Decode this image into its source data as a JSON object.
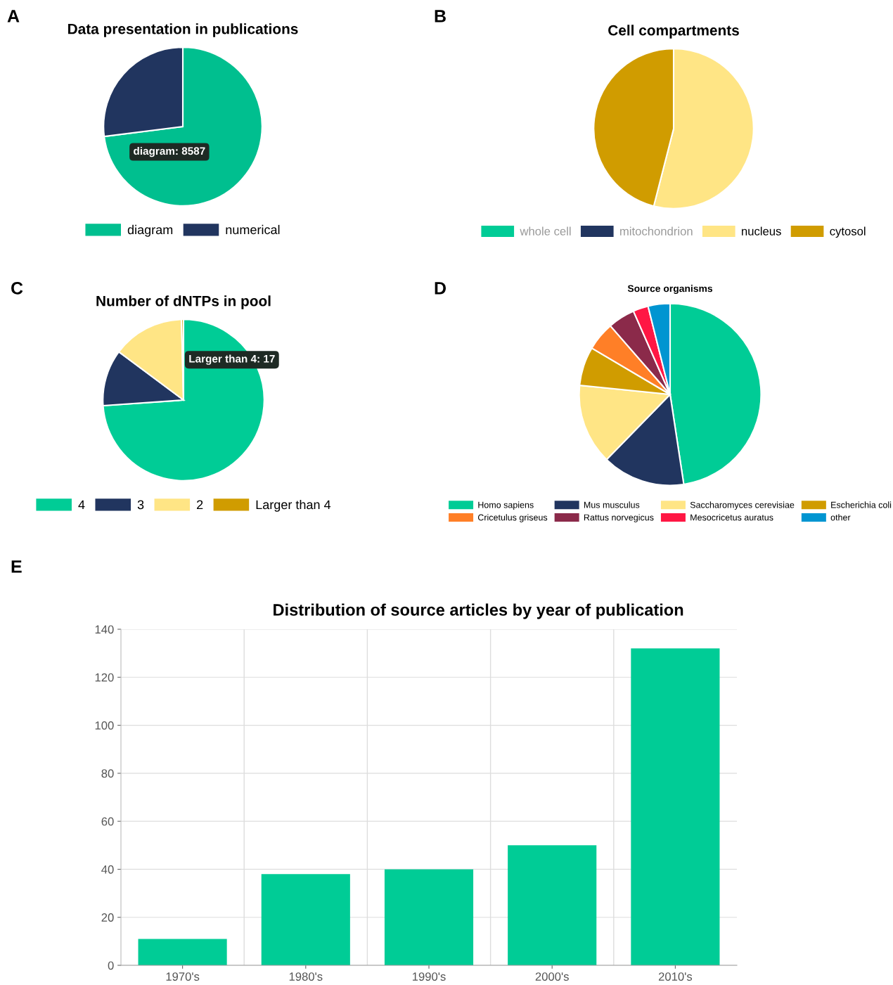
{
  "chart_data": [
    {
      "type": "pie",
      "title": "Data presentation in publications",
      "categories": [
        "diagram",
        "numerical"
      ],
      "values": [
        73,
        27
      ],
      "colors": [
        "#00bf8f",
        "#21355f"
      ],
      "legend": "bottom",
      "annotations": [
        "A",
        "diagram: 8587"
      ]
    },
    {
      "type": "pie",
      "title": "Cell compartments",
      "categories": [
        "whole cell",
        "mitochondrion",
        "nucleus",
        "cytosol"
      ],
      "values": [
        null,
        null,
        54,
        46
      ],
      "colors": [
        "#00cc96",
        "#21355f",
        "#ffe585",
        "#d09c00"
      ],
      "legend": "bottom",
      "annotations": [
        "B"
      ]
    },
    {
      "type": "pie",
      "title": "Number of dNTPs in pool",
      "categories": [
        "4",
        "3",
        "2",
        "Larger than 4"
      ],
      "values": [
        73.9,
        11.3,
        14.4,
        0.4
      ],
      "colors": [
        "#00cc96",
        "#21355f",
        "#ffe585",
        "#d09c00"
      ],
      "legend": "bottom",
      "annotations": [
        "C",
        "Larger than 4: 17"
      ]
    },
    {
      "type": "pie",
      "title": "Source organisms",
      "categories": [
        "Homo sapiens",
        "Mus musculus",
        "Saccharomyces cerevisiae",
        "Escherichia coli",
        "Cricetulus griseus",
        "Rattus norvegicus",
        "Mesocricetus auratus",
        "other"
      ],
      "values": [
        47.6,
        14.7,
        14.3,
        6.9,
        5.1,
        4.8,
        2.7,
        3.9
      ],
      "colors": [
        "#00cc96",
        "#21355f",
        "#ffe585",
        "#d09c00",
        "#ff7f27",
        "#8b2a4a",
        "#ff1744",
        "#0095d1"
      ],
      "legend": "bottom",
      "annotations": [
        "D"
      ]
    },
    {
      "type": "bar",
      "title": "Distribution of source articles by year of publication",
      "categories": [
        "1970's",
        "1980's",
        "1990's",
        "2000's",
        "2010's"
      ],
      "values": [
        11,
        38,
        40,
        50,
        132
      ],
      "color": "#00cc96",
      "ylim": [
        0,
        140
      ],
      "yticks": [
        0,
        20,
        40,
        60,
        80,
        100,
        120,
        140
      ],
      "grid": true,
      "annotations": [
        "E"
      ]
    }
  ]
}
